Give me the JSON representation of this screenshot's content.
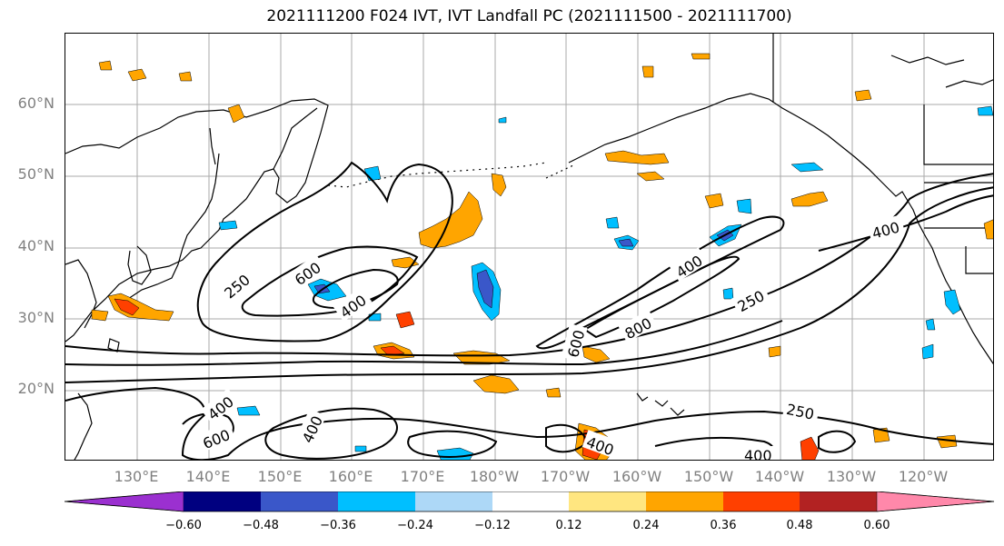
{
  "title": "2021111200 F024 IVT, IVT Landfall PC (2021111500 - 2021111700)",
  "lat_labels": [
    "60°N",
    "50°N",
    "40°N",
    "30°N",
    "20°N"
  ],
  "lon_labels": [
    "130°E",
    "140°E",
    "150°E",
    "160°E",
    "170°E",
    "180°W",
    "170°W",
    "160°W",
    "150°W",
    "140°W",
    "130°W",
    "120°W"
  ],
  "contour_labels": [
    "250",
    "600",
    "400",
    "400",
    "600",
    "800",
    "250",
    "400",
    "400",
    "600",
    "400",
    "250",
    "400",
    "400"
  ],
  "colorbar": {
    "colors": [
      "#9b30d0",
      "#000080",
      "#3a57c9",
      "#00bfff",
      "#add8f7",
      "#ffffff",
      "#ffe680",
      "#ffa500",
      "#ff4000",
      "#b22222",
      "#ff88aa"
    ],
    "ticks": [
      "−0.60",
      "−0.48",
      "−0.36",
      "−0.24",
      "−0.12",
      "0.12",
      "0.24",
      "0.36",
      "0.48",
      "0.60"
    ]
  },
  "colors": {
    "gridline": "#aaaaaa",
    "coastline": "#000000",
    "axis_label": "#808080"
  }
}
